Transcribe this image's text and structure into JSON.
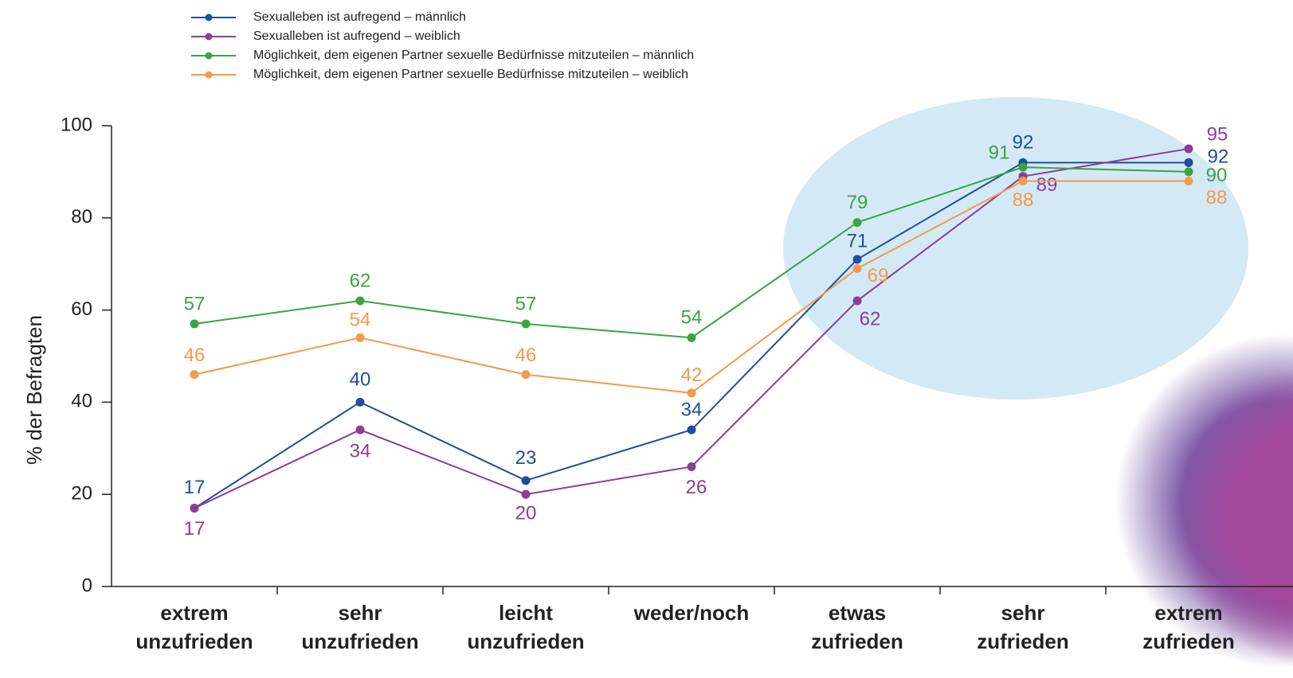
{
  "chart_data": {
    "type": "line",
    "y_label": "% der Befragten",
    "categories": [
      "extrem unzufrieden",
      "sehr unzufrieden",
      "leicht unzufrieden",
      "weder/noch",
      "etwas zufrieden",
      "sehr zufrieden",
      "extrem zufrieden"
    ],
    "series": [
      {
        "name": "Sexualleben ist aufregend – männlich",
        "color": "#1f4e9c",
        "values": [
          17,
          40,
          23,
          34,
          71,
          92,
          92
        ]
      },
      {
        "name": "Sexualleben ist aufregend – weiblich",
        "color": "#8b3d97",
        "values": [
          17,
          34,
          20,
          26,
          62,
          89,
          95
        ]
      },
      {
        "name": "Möglichkeit, dem eigenen Partner sexuelle Bedürfnisse mitzuteilen – männlich",
        "color": "#3ba344",
        "values": [
          57,
          62,
          57,
          54,
          79,
          91,
          90
        ]
      },
      {
        "name": "Möglichkeit, dem eigenen Partner sexuelle Bedürfnisse mitzuteilen – weiblich",
        "color": "#f39a4b",
        "values": [
          46,
          54,
          46,
          42,
          69,
          88,
          88
        ]
      }
    ],
    "ylim": [
      0,
      100
    ],
    "yticks": [
      0,
      20,
      40,
      60,
      80,
      100
    ],
    "grid": false
  }
}
